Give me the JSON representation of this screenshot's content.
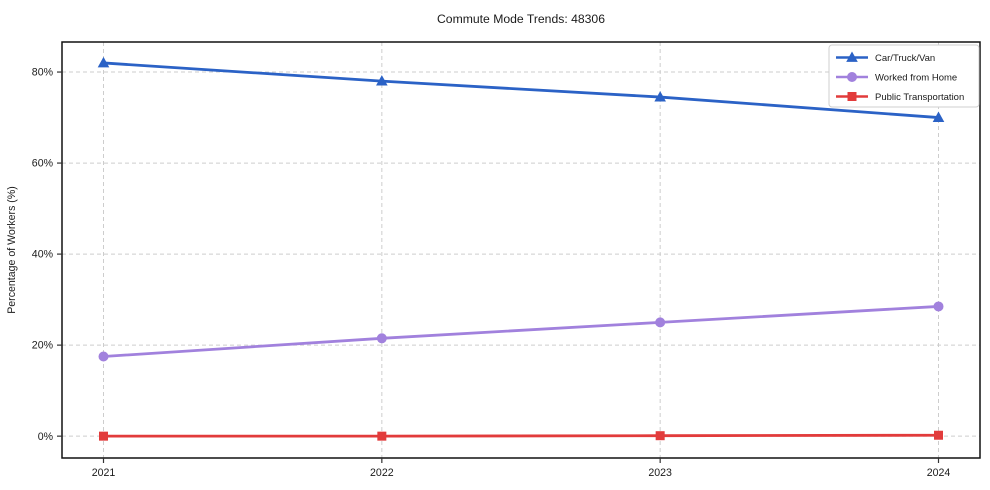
{
  "title": "Commute Mode Trends: 48306",
  "chart_data": {
    "type": "line",
    "title": "Commute Mode Trends: 48306",
    "xlabel": "",
    "ylabel": "Percentage of Workers (%)",
    "categories": [
      "2021",
      "2022",
      "2023",
      "2024"
    ],
    "series": [
      {
        "name": "Car/Truck/Van",
        "values": [
          82,
          78,
          74.5,
          70
        ],
        "color": "#2b62c6",
        "marker": "triangle"
      },
      {
        "name": "Worked from Home",
        "values": [
          17.5,
          21.5,
          25,
          28.5
        ],
        "color": "#a181dd",
        "marker": "circle"
      },
      {
        "name": "Public Transportation",
        "values": [
          0,
          0,
          0.1,
          0.2
        ],
        "color": "#e23b3b",
        "marker": "square"
      }
    ],
    "ylim": [
      -4.8,
      86.6
    ],
    "yticks": [
      0,
      20,
      40,
      60,
      80
    ],
    "ytick_labels": [
      "0%",
      "20%",
      "40%",
      "60%",
      "80%"
    ],
    "grid": true,
    "grid_style": "dashed",
    "grid_color": "#cdcdcd",
    "legend_position": "top-right",
    "legend_entries": [
      "Car/Truck/Van",
      "Worked from Home",
      "Public Transportation"
    ]
  }
}
